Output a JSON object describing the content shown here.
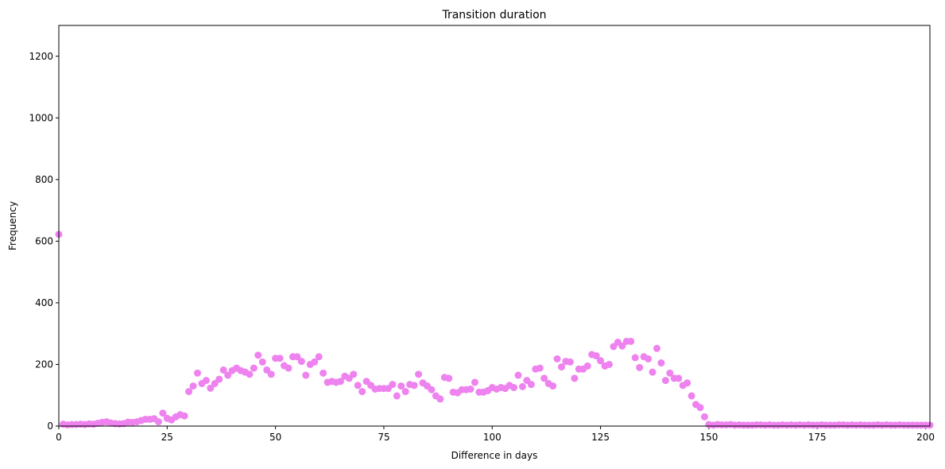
{
  "chart_data": {
    "type": "scatter",
    "title": "Transition duration",
    "xlabel": "Difference in days",
    "ylabel": "Frequency",
    "xlim": [
      0,
      201
    ],
    "ylim": [
      0,
      1300
    ],
    "xticks": [
      0,
      25,
      50,
      75,
      100,
      125,
      150,
      175,
      200
    ],
    "yticks": [
      0,
      200,
      400,
      600,
      800,
      1000,
      1200
    ],
    "grid": false,
    "legend": "none",
    "colors": {
      "marker": "#ee82ee",
      "axes": "#000000",
      "background": "#ffffff"
    },
    "series": [
      {
        "x": [
          0,
          1,
          2,
          3,
          4,
          5,
          6,
          7,
          8,
          9,
          10,
          11,
          12,
          13,
          14,
          15,
          16,
          17,
          18,
          19,
          20,
          21,
          22,
          23,
          24,
          25,
          26,
          27,
          28,
          29,
          30,
          31,
          32,
          33,
          34,
          35,
          36,
          37,
          38,
          39,
          40,
          41,
          42,
          43,
          44,
          45,
          46,
          47,
          48,
          49,
          50,
          51,
          52,
          53,
          54,
          55,
          56,
          57,
          58,
          59,
          60,
          61,
          62,
          63,
          64,
          65,
          66,
          67,
          68,
          69,
          70,
          71,
          72,
          73,
          74,
          75,
          76,
          77,
          78,
          79,
          80,
          81,
          82,
          83,
          84,
          85,
          86,
          87,
          88,
          89,
          90,
          91,
          92,
          93,
          94,
          95,
          96,
          97,
          98,
          99,
          100,
          101,
          102,
          103,
          104,
          105,
          106,
          107,
          108,
          109,
          110,
          111,
          112,
          113,
          114,
          115,
          116,
          117,
          118,
          119,
          120,
          121,
          122,
          123,
          124,
          125,
          126,
          127,
          128,
          129,
          130,
          131,
          132,
          133,
          134,
          135,
          136,
          137,
          138,
          139,
          140,
          141,
          142,
          143,
          144,
          145,
          146,
          147,
          148,
          149,
          150,
          151,
          152,
          153,
          154,
          155,
          156,
          157,
          158,
          159,
          160,
          161,
          162,
          163,
          164,
          165,
          166,
          167,
          168,
          169,
          170,
          171,
          172,
          173,
          174,
          175,
          176,
          177,
          178,
          179,
          180,
          181,
          182,
          183,
          184,
          185,
          186,
          187,
          188,
          189,
          190,
          191,
          192,
          193,
          194,
          195,
          196,
          197,
          198,
          199,
          200,
          201
        ],
        "y": [
          622,
          6,
          4,
          5,
          5,
          6,
          5,
          7,
          6,
          9,
          12,
          14,
          10,
          8,
          7,
          8,
          13,
          12,
          14,
          18,
          22,
          22,
          24,
          14,
          42,
          25,
          20,
          30,
          37,
          33,
          112,
          130,
          172,
          138,
          148,
          123,
          138,
          152,
          182,
          165,
          180,
          188,
          180,
          175,
          168,
          188,
          230,
          208,
          182,
          168,
          220,
          220,
          196,
          188,
          225,
          225,
          210,
          165,
          200,
          208,
          225,
          172,
          142,
          145,
          142,
          145,
          162,
          155,
          168,
          132,
          112,
          145,
          132,
          120,
          122,
          122,
          122,
          135,
          98,
          130,
          112,
          135,
          132,
          168,
          140,
          130,
          118,
          98,
          88,
          158,
          155,
          110,
          108,
          118,
          118,
          120,
          142,
          110,
          110,
          115,
          125,
          120,
          125,
          122,
          132,
          125,
          165,
          128,
          148,
          135,
          185,
          188,
          155,
          138,
          130,
          218,
          192,
          210,
          208,
          155,
          185,
          185,
          195,
          232,
          228,
          212,
          195,
          200,
          258,
          272,
          260,
          275,
          275,
          222,
          190,
          225,
          218,
          175,
          252,
          205,
          148,
          172,
          155,
          155,
          132,
          140,
          98,
          70,
          60,
          30,
          5,
          3,
          5,
          4,
          4,
          5,
          3,
          4,
          3,
          3,
          3,
          4,
          4,
          3,
          4,
          3,
          3,
          4,
          3,
          4,
          3,
          4,
          3,
          4,
          3,
          3,
          4,
          3,
          3,
          3,
          4,
          4,
          3,
          4,
          3,
          4,
          3,
          3,
          3,
          4,
          3,
          4,
          3,
          3,
          4,
          3,
          3,
          3,
          3,
          3,
          3,
          3
        ]
      }
    ]
  }
}
